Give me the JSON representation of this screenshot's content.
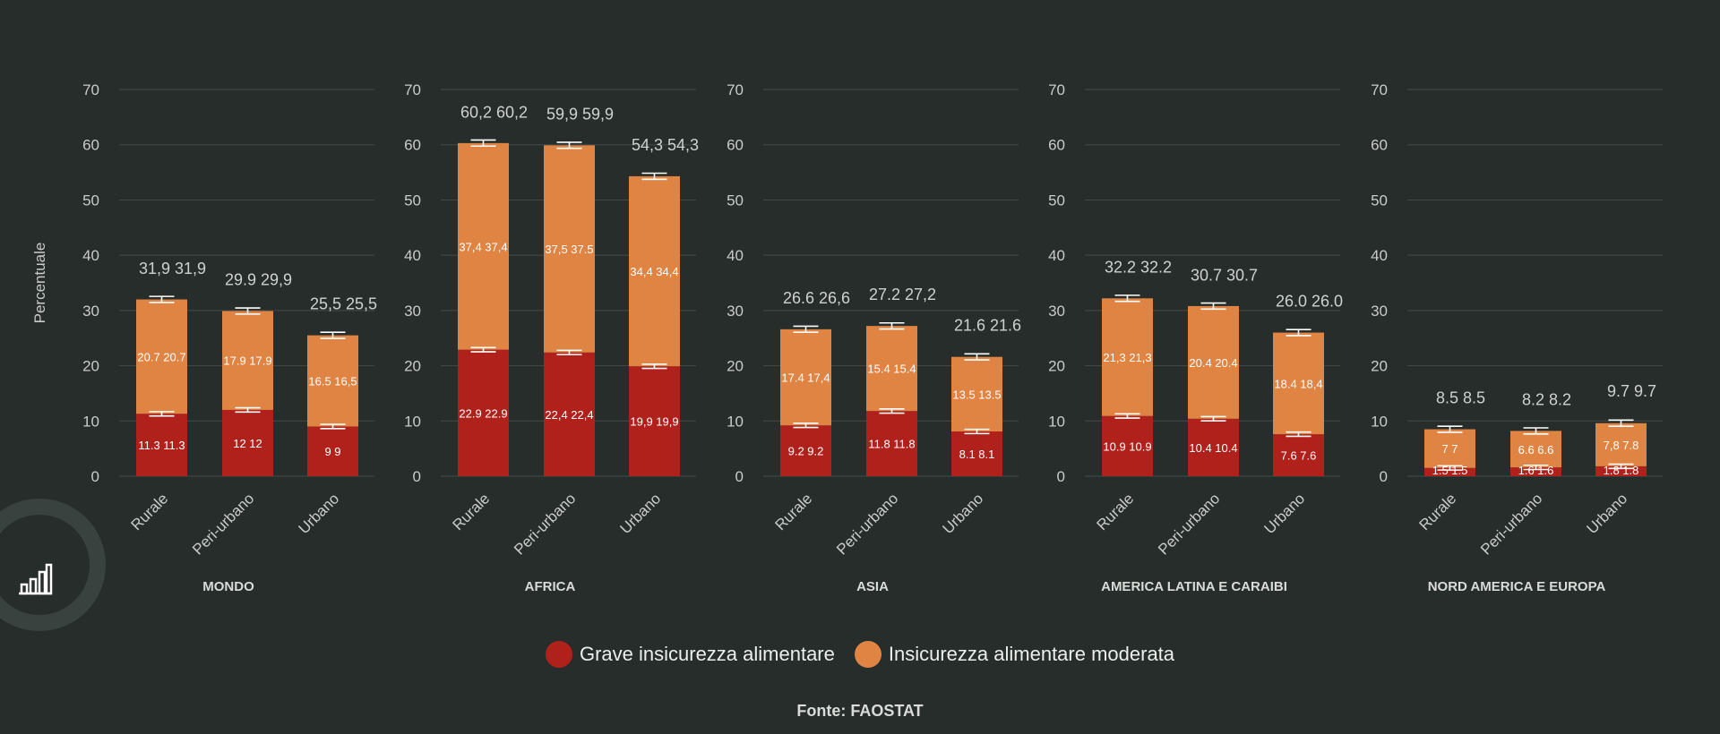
{
  "chart_data": {
    "type": "bar",
    "stacked": true,
    "ylabel": "Percentuale",
    "ylim": [
      0,
      70
    ],
    "yticks": [
      0,
      10,
      20,
      30,
      40,
      50,
      60,
      70
    ],
    "grid": true,
    "legend_position": "bottom",
    "series": [
      {
        "name": "Grave insicurezza alimentare",
        "color": "#b0211b"
      },
      {
        "name": "Insicurezza alimentare moderata",
        "color": "#e08444"
      }
    ],
    "panels": [
      {
        "title": "MONDO",
        "categories": [
          "Rurale",
          "Peri-urbano",
          "Urbano"
        ],
        "severe": [
          11.3,
          12,
          9
        ],
        "moderate": [
          20.7,
          17.9,
          16.5
        ],
        "totals": [
          31.9,
          29.9,
          25.5
        ],
        "severe_labels": [
          "11.3 11.3",
          "12 12",
          "9 9"
        ],
        "moderate_labels": [
          "20.7 20.7",
          "17.9 17.9",
          "16.5 16,5"
        ],
        "total_labels": [
          "31,9 31,9",
          "29.9 29,9",
          "25,5 25,5"
        ]
      },
      {
        "title": "AFRICA",
        "categories": [
          "Rurale",
          "Peri-urbano",
          "Urbano"
        ],
        "severe": [
          22.9,
          22.4,
          19.9
        ],
        "moderate": [
          37.4,
          37.5,
          34.4
        ],
        "totals": [
          60.2,
          59.9,
          54.3
        ],
        "severe_labels": [
          "22.9 22.9",
          "22,4 22,4",
          "19,9 19,9"
        ],
        "moderate_labels": [
          "37,4 37,4",
          "37,5 37.5",
          "34,4 34,4"
        ],
        "total_labels": [
          "60,2 60,2",
          "59,9 59,9",
          "54,3 54,3"
        ]
      },
      {
        "title": "ASIA",
        "categories": [
          "Rurale",
          "Peri-urbano",
          "Urbano"
        ],
        "severe": [
          9.2,
          11.8,
          8.1
        ],
        "moderate": [
          17.4,
          15.4,
          13.5
        ],
        "totals": [
          26.6,
          27.2,
          21.6
        ],
        "severe_labels": [
          "9.2 9.2",
          "11.8 11.8",
          "8.1 8.1"
        ],
        "moderate_labels": [
          "17.4 17,4",
          "15.4 15.4",
          "13.5 13.5"
        ],
        "total_labels": [
          "26.6 26,6",
          "27.2 27,2",
          "21.6 21.6"
        ]
      },
      {
        "title": "AMERICA LATINA E CARAIBI",
        "categories": [
          "Rurale",
          "Peri-urbano",
          "Urbano"
        ],
        "severe": [
          10.9,
          10.4,
          7.6
        ],
        "moderate": [
          21.3,
          20.4,
          18.4
        ],
        "totals": [
          32.2,
          30.7,
          26.0
        ],
        "severe_labels": [
          "10.9 10.9",
          "10.4 10.4",
          "7.6 7.6"
        ],
        "moderate_labels": [
          "21,3 21,3",
          "20.4 20.4",
          "18.4 18,4"
        ],
        "total_labels": [
          "32.2 32.2",
          "30.7 30.7",
          "26.0 26.0"
        ]
      },
      {
        "title": "NORD AMERICA E EUROPA",
        "categories": [
          "Rurale",
          "Peri-urbano",
          "Urbano"
        ],
        "severe": [
          1.5,
          1.6,
          1.8
        ],
        "moderate": [
          7,
          6.6,
          7.8
        ],
        "totals": [
          8.5,
          8.2,
          9.7
        ],
        "severe_labels": [
          "1.5 1.5",
          "1.6 1.6",
          "1.8 1.8"
        ],
        "moderate_labels": [
          "7 7",
          "6.6 6.6",
          "7,8 7.8"
        ],
        "total_labels": [
          "8.5 8.5",
          "8.2 8.2",
          "9.7 9.7"
        ]
      }
    ]
  },
  "legend": {
    "severe_label": "Grave insicurezza alimentare",
    "moderate_label": "Insicurezza alimentare moderata"
  },
  "source": "Fonte: FAOSTAT",
  "badge_icon": "bar-chart-icon"
}
